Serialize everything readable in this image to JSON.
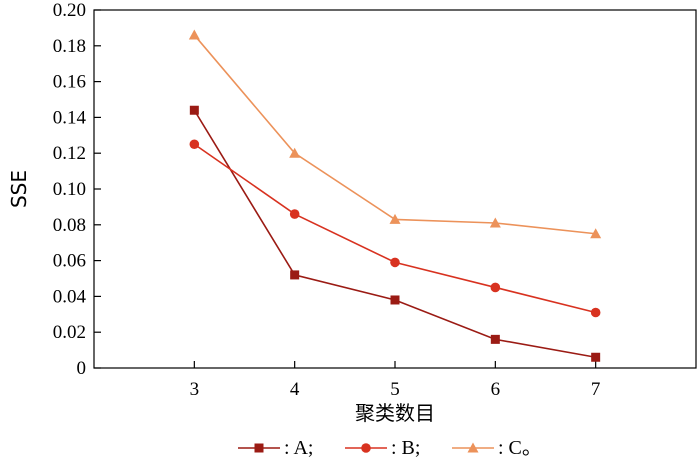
{
  "chart_data": {
    "type": "line",
    "xlabel": "聚类数目",
    "ylabel": "SSE",
    "x": [
      3,
      4,
      5,
      6,
      7
    ],
    "xlim": [
      2,
      8
    ],
    "ylim": [
      0,
      0.2
    ],
    "yticks": [
      "0",
      "0.02",
      "0.04",
      "0.06",
      "0.08",
      "0.10",
      "0.12",
      "0.14",
      "0.16",
      "0.18",
      "0.20"
    ],
    "xticks": [
      "3",
      "4",
      "5",
      "6",
      "7"
    ],
    "legend_position": "bottom",
    "series": [
      {
        "name": "A",
        "legend_label": ": A;",
        "marker": "square",
        "color": "#9b1b14",
        "values": [
          0.144,
          0.052,
          0.038,
          0.016,
          0.006
        ]
      },
      {
        "name": "B",
        "legend_label": ": B;",
        "marker": "circle",
        "color": "#d83220",
        "values": [
          0.125,
          0.086,
          0.059,
          0.045,
          0.031
        ]
      },
      {
        "name": "C",
        "legend_label": ": C。",
        "marker": "triangle",
        "color": "#ec925a",
        "values": [
          0.186,
          0.12,
          0.083,
          0.081,
          0.075
        ]
      }
    ]
  }
}
